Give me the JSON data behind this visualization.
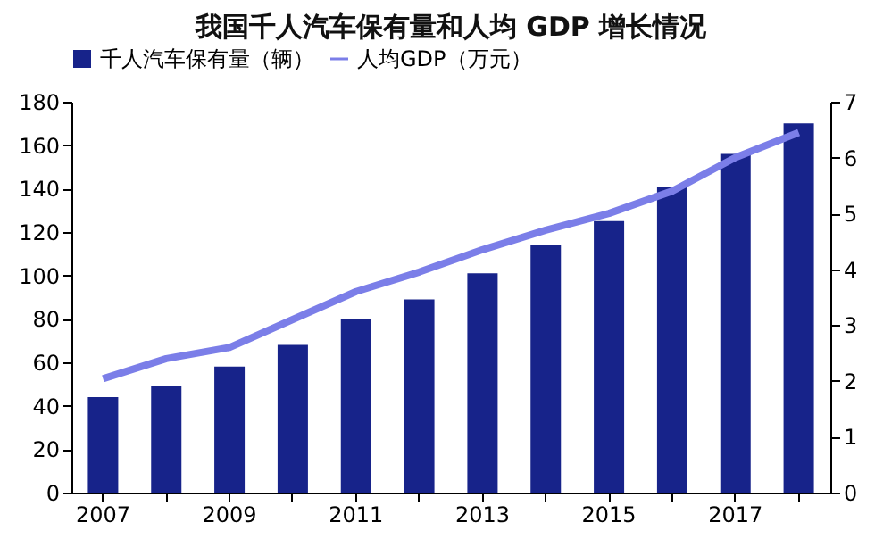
{
  "chart_data": {
    "type": "bar",
    "title": "我国千人汽车保有量和人均 GDP 增长情况",
    "categories": [
      "2007",
      null,
      "2009",
      null,
      "2011",
      null,
      "2013",
      null,
      "2015",
      null,
      "2017",
      null
    ],
    "series": [
      {
        "name": "千人汽车保有量（辆）",
        "color": "#17238a",
        "values": [
          44,
          49,
          58,
          68,
          80,
          89,
          101,
          114,
          125,
          141,
          156,
          170
        ]
      },
      {
        "name": "人均GDP（万元）",
        "type": "line",
        "axis": "y2",
        "color": "#7b7ee8",
        "values": [
          2.04,
          2.4,
          2.6,
          3.1,
          3.6,
          3.95,
          4.35,
          4.7,
          5.0,
          5.4,
          6.0,
          6.45
        ]
      }
    ],
    "ylim": [
      0,
      180
    ],
    "yticks": [
      0,
      20,
      40,
      60,
      80,
      100,
      120,
      140,
      160,
      180
    ],
    "y2lim": [
      0,
      7
    ],
    "y2ticks": [
      0,
      1,
      2,
      3,
      4,
      5,
      6,
      7
    ],
    "grid": false,
    "legend": "top"
  }
}
